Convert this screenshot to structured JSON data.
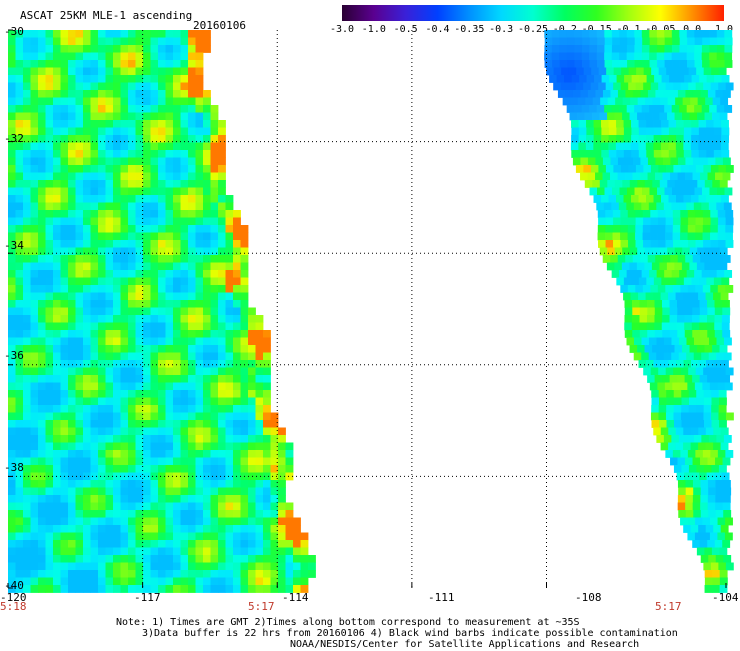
{
  "header": {
    "title": "ASCAT 25KM MLE-1 ascending",
    "date": "20160106"
  },
  "colorbar": {
    "labels": [
      "-3.0",
      "-1.0",
      "-0.5",
      "-0.4",
      "-0.35",
      "-0.3",
      "-0.25",
      "-0.2",
      "-0.15",
      "-0.1",
      "-0.05",
      "0.0",
      "1.0"
    ],
    "colors": [
      "#2a0033",
      "#5a0090",
      "#3a20d8",
      "#0040ff",
      "#0090ff",
      "#00d8ff",
      "#00ffd0",
      "#00ff60",
      "#30ff20",
      "#a0ff10",
      "#ffff00",
      "#ff9000",
      "#ff2000"
    ]
  },
  "map": {
    "lat_labels": [
      "-30",
      "-32",
      "-34",
      "-36",
      "-38",
      "-40"
    ],
    "lon_labels": [
      "-120",
      "-117",
      "-114",
      "-111",
      "-108",
      "-104"
    ],
    "lat_range": [
      -40,
      -30
    ],
    "lon_range": [
      -120,
      -104
    ],
    "grid": "dotted",
    "time_labels": [
      "5:18",
      "5:17",
      "5:17"
    ]
  },
  "notes": {
    "line1": "Note: 1) Times are GMT 2)Times along bottom correspond to measurement at ~35S",
    "line2": "3)Data buffer is 22 hrs from 20160106 4) Black wind barbs indicate possible contamination",
    "line3": "NOAA/NESDIS/Center for Satellite Applications and Research"
  }
}
